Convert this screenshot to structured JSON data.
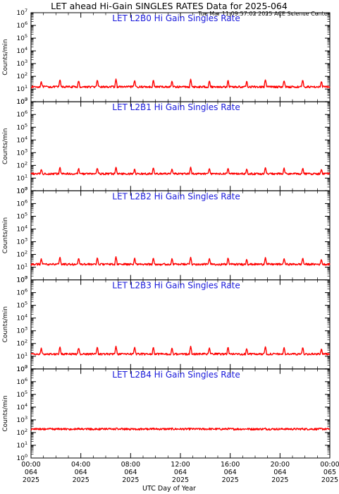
{
  "title": "LET ahead Hi-Gain SINGLES RATES Data for 2025-064",
  "timestamp": "Tue Mar 11 09:57:02 2025 ACE Science Center",
  "colors": {
    "data": "#ff0000",
    "panel_title": "#1a1adb",
    "axes": "#000000",
    "background": "#ffffff"
  },
  "chart_data": [
    {
      "type": "line",
      "title": "LET L2B0 Hi Gain Singles Rate",
      "ylabel": "Counts/min",
      "yscale": "log",
      "ylim": [
        1,
        10000000
      ],
      "baseline": 15,
      "spikes": [
        40,
        55,
        45,
        50,
        60,
        48,
        52,
        44,
        58,
        46,
        50,
        42,
        55,
        47,
        53,
        40
      ],
      "xlim": [
        0,
        24
      ],
      "grid": false
    },
    {
      "type": "line",
      "title": "LET L2B1 Hi Gain Singles Rate",
      "ylabel": "Counts/min",
      "yscale": "log",
      "ylim": [
        1,
        10000000
      ],
      "baseline": 22,
      "spikes": [
        50,
        70,
        60,
        65,
        75,
        55,
        68,
        58,
        72,
        60,
        66,
        52,
        70,
        62,
        64,
        50
      ],
      "xlim": [
        0,
        24
      ],
      "grid": false
    },
    {
      "type": "line",
      "title": "LET L2B2 Hi Gain Singles Rate",
      "ylabel": "Counts/min",
      "yscale": "log",
      "ylim": [
        1,
        10000000
      ],
      "baseline": 17,
      "spikes": [
        45,
        60,
        50,
        55,
        65,
        52,
        58,
        48,
        62,
        50,
        56,
        44,
        60,
        50,
        54,
        42
      ],
      "xlim": [
        0,
        24
      ],
      "grid": false
    },
    {
      "type": "line",
      "title": "LET L2B3 Hi Gain Singles Rate",
      "ylabel": "Counts/min",
      "yscale": "log",
      "ylim": [
        1,
        10000000
      ],
      "baseline": 15,
      "spikes": [
        42,
        58,
        48,
        52,
        60,
        50,
        55,
        45,
        60,
        48,
        54,
        42,
        58,
        48,
        52,
        40
      ],
      "xlim": [
        0,
        24
      ],
      "grid": false
    },
    {
      "type": "line",
      "title": "LET L2B4 Hi Gain Singles Rate",
      "ylabel": "Counts/min",
      "yscale": "log",
      "ylim": [
        1,
        10000000
      ],
      "baseline": 190,
      "spikes": [
        200,
        205,
        200,
        202,
        206,
        200,
        204,
        200,
        205,
        200,
        203,
        200,
        205,
        200,
        202,
        200
      ],
      "xlim": [
        0,
        24
      ],
      "grid": false
    }
  ],
  "y_tick_exponents": [
    "0",
    "1",
    "2",
    "3",
    "4",
    "5",
    "6",
    "7"
  ],
  "y_tick_base": "10",
  "x_ticks": [
    {
      "hour": 0,
      "time": "00:00",
      "doy": "064",
      "year": "2025"
    },
    {
      "hour": 4,
      "time": "04:00",
      "doy": "064",
      "year": "2025"
    },
    {
      "hour": 8,
      "time": "08:00",
      "doy": "064",
      "year": "2025"
    },
    {
      "hour": 12,
      "time": "12:00",
      "doy": "064",
      "year": "2025"
    },
    {
      "hour": 16,
      "time": "16:00",
      "doy": "064",
      "year": "2025"
    },
    {
      "hour": 20,
      "time": "20:00",
      "doy": "064",
      "year": "2025"
    },
    {
      "hour": 24,
      "time": "00:00",
      "doy": "065",
      "year": "2025"
    }
  ],
  "xlabel": "UTC Day of Year"
}
